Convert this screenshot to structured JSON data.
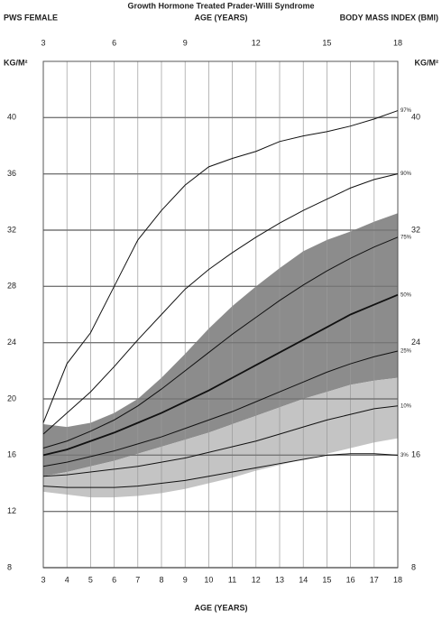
{
  "chart_data": {
    "type": "line",
    "title": "Growth Hormone Treated Prader-Willi Syndrome",
    "subtitle_left": "PWS FEMALE",
    "subtitle_center": "AGE (YEARS)",
    "subtitle_right": "BODY MASS INDEX (BMI)",
    "y_label": "KG/M²",
    "y2_label": "KG/M²",
    "x_label": "AGE (YEARS)",
    "x": [
      3,
      4,
      5,
      6,
      7,
      8,
      9,
      10,
      11,
      12,
      13,
      14,
      15,
      16,
      17,
      18
    ],
    "xlim": [
      3,
      18
    ],
    "xticks": [
      3,
      4,
      5,
      6,
      7,
      8,
      9,
      10,
      11,
      12,
      13,
      14,
      15,
      16,
      17,
      18
    ],
    "x2ticks": [
      3,
      6,
      9,
      12,
      15,
      18
    ],
    "ylim": [
      8,
      44
    ],
    "yticks": [
      8,
      12,
      16,
      20,
      24,
      28,
      32,
      36,
      40
    ],
    "y2ticks": [
      8,
      16,
      24,
      32,
      40
    ],
    "grid": true,
    "line_color": "#111111",
    "bands": [
      {
        "color": "#8c8c8c",
        "upper": [
          18.2,
          18,
          18.3,
          19,
          20,
          21.5,
          23.2,
          25,
          26.6,
          28,
          29.3,
          30.5,
          31.3,
          31.9,
          32.6,
          33.2
        ],
        "lower": [
          14.5,
          14.8,
          15.2,
          15.6,
          16.1,
          16.6,
          17.1,
          17.6,
          18.2,
          18.8,
          19.4,
          20,
          20.5,
          21,
          21.3,
          21.5
        ]
      },
      {
        "color": "#c4c4c4",
        "upper": [
          14.5,
          14.8,
          15.2,
          15.6,
          16.1,
          16.6,
          17.1,
          17.6,
          18.2,
          18.8,
          19.4,
          20,
          20.5,
          21,
          21.3,
          21.5
        ],
        "lower": [
          13.4,
          13.2,
          13,
          13,
          13.1,
          13.3,
          13.6,
          14,
          14.4,
          14.9,
          15.3,
          15.7,
          16.1,
          16.5,
          16.9,
          17.2
        ]
      }
    ],
    "series": [
      {
        "name": "97%",
        "values": [
          18.3,
          22.5,
          24.7,
          28,
          31.3,
          33.4,
          35.2,
          36.5,
          37.1,
          37.6,
          38.3,
          38.7,
          39,
          39.4,
          39.9,
          40.5
        ]
      },
      {
        "name": "90%",
        "values": [
          17.5,
          19,
          20.5,
          22.3,
          24.2,
          26,
          27.8,
          29.2,
          30.4,
          31.5,
          32.5,
          33.4,
          34.2,
          35,
          35.6,
          36
        ]
      },
      {
        "name": "75%",
        "values": [
          16.5,
          17,
          17.7,
          18.5,
          19.5,
          20.7,
          22,
          23.3,
          24.6,
          25.8,
          27,
          28.1,
          29.1,
          30,
          30.8,
          31.5
        ]
      },
      {
        "name": "50%",
        "values": [
          16,
          16.4,
          17,
          17.6,
          18.3,
          19,
          19.8,
          20.6,
          21.5,
          22.4,
          23.3,
          24.2,
          25.1,
          26,
          26.7,
          27.4
        ]
      },
      {
        "name": "25%",
        "values": [
          15.2,
          15.5,
          15.9,
          16.3,
          16.8,
          17.3,
          17.9,
          18.5,
          19.1,
          19.8,
          20.5,
          21.2,
          21.9,
          22.5,
          23,
          23.4
        ]
      },
      {
        "name": "10%",
        "values": [
          14.5,
          14.6,
          14.8,
          15,
          15.2,
          15.5,
          15.8,
          16.2,
          16.6,
          17,
          17.5,
          18,
          18.5,
          18.9,
          19.3,
          19.5
        ]
      },
      {
        "name": "3%",
        "values": [
          13.8,
          13.7,
          13.7,
          13.7,
          13.8,
          14,
          14.2,
          14.5,
          14.8,
          15.1,
          15.4,
          15.7,
          16,
          16.1,
          16.1,
          16
        ]
      }
    ]
  }
}
